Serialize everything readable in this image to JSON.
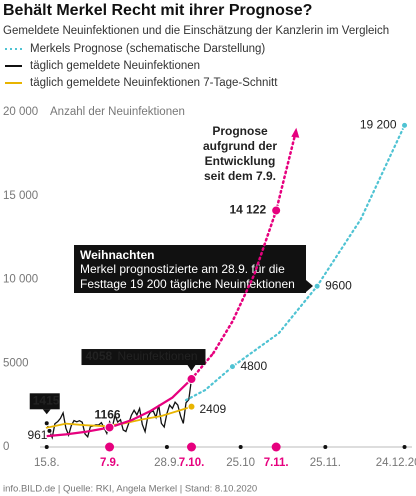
{
  "chart_data": {
    "type": "line",
    "title": "Behält Merkel Recht mit ihrer Prognose?",
    "subtitle": "Gemeldete Neuinfektionen und die Einschätzung der Kanzlerin im Vergleich",
    "y_label": "Anzahl der Neuinfektionen",
    "ylim": [
      0,
      20000
    ],
    "yticks": [
      0,
      5000,
      {
        "value": 10000,
        "label": "10 000"
      },
      {
        "value": 15000,
        "label": "15 000"
      },
      {
        "value": 20000,
        "label": "20 000"
      }
    ],
    "xlim": [
      "14.8.",
      "26.12."
    ],
    "xticks": [
      "15.8.",
      "7.9.",
      "28.9.",
      "7.10.",
      "25.10",
      "7.11.",
      "25.11.",
      "24.12.2020"
    ],
    "highlighted_xticks": [
      "7.9.",
      "7.10.",
      "7.11."
    ],
    "grid": false,
    "series": [
      {
        "name": "Merkels Prognose (schematische Darstellung)",
        "color": "#4fc3d3",
        "style": "dotted",
        "x": [
          "5.10.",
          "12.10.",
          "22.10.",
          "8.11.",
          "22.11.",
          "8.12.",
          "24.12."
        ],
        "values": [
          2800,
          3400,
          4800,
          6800,
          9600,
          13600,
          19200
        ],
        "value_labels": [
          null,
          null,
          "4800",
          null,
          "9600",
          null,
          "19 200"
        ]
      },
      {
        "name": "täglich gemeldete Neuinfektionen",
        "color": "#111111",
        "style": "solid",
        "x": [
          "15.8.",
          "16.8.",
          "17.8.",
          "18.8.",
          "19.8.",
          "20.8.",
          "21.8.",
          "22.8.",
          "23.8.",
          "24.8.",
          "25.8.",
          "26.8.",
          "27.8.",
          "28.8.",
          "29.8.",
          "30.8.",
          "31.8.",
          "1.9.",
          "2.9.",
          "3.9.",
          "4.9.",
          "5.9.",
          "6.9.",
          "7.9.",
          "8.9.",
          "9.9.",
          "10.9.",
          "11.9.",
          "12.9.",
          "13.9.",
          "14.9.",
          "15.9.",
          "16.9.",
          "17.9.",
          "18.9.",
          "19.9.",
          "20.9.",
          "21.9.",
          "22.9.",
          "23.9.",
          "24.9.",
          "25.9.",
          "26.9.",
          "27.9.",
          "28.9.",
          "29.9.",
          "30.9.",
          "1.10.",
          "2.10.",
          "3.10.",
          "4.10.",
          "5.10.",
          "6.10.",
          "7.10."
        ],
        "values": [
          1415,
          961,
          561,
          1390,
          1510,
          1707,
          2034,
          1122,
          711,
          1278,
          1576,
          1507,
          1571,
          1479,
          785,
          610,
          1218,
          1256,
          1326,
          1311,
          1453,
          1135,
          814,
          1499,
          1176,
          1892,
          1484,
          1630,
          1017,
          927,
          1407,
          1901,
          2194,
          1916,
          2297,
          1345,
          922,
          1821,
          2089,
          2143,
          1769,
          2507,
          1411,
          1192,
          1999,
          2503,
          2303,
          2673,
          2503,
          1844,
          1410,
          2639,
          2828,
          4058
        ],
        "value_labels": [
          "1415",
          "961",
          null,
          null,
          null,
          null,
          null,
          null,
          null,
          null,
          null,
          null,
          null,
          null,
          null,
          null,
          null,
          null,
          null,
          null,
          null,
          null,
          null,
          null,
          null,
          null,
          null,
          null,
          null,
          null,
          null,
          null,
          null,
          null,
          null,
          null,
          null,
          null,
          null,
          null,
          null,
          null,
          null,
          null,
          null,
          null,
          null,
          null,
          null,
          null,
          null,
          null,
          null,
          null
        ]
      },
      {
        "name": "täglich gemeldete Neuinfektionen 7-Tage-Schnitt",
        "color": "#e8b400",
        "style": "solid",
        "x": [
          "15.8.",
          "22.8.",
          "29.8.",
          "5.9.",
          "12.9.",
          "19.9.",
          "26.9.",
          "3.10.",
          "7.10."
        ],
        "values": [
          1150,
          1400,
          1300,
          1250,
          1400,
          1650,
          1850,
          2200,
          2409
        ],
        "value_labels": [
          null,
          null,
          null,
          null,
          null,
          null,
          null,
          null,
          "2409"
        ]
      }
    ],
    "forecast": {
      "label_lines": [
        "Prognose",
        "aufgrund der",
        "Entwicklung",
        "seit dem 7.9."
      ],
      "color": "#e6007e",
      "x": [
        "15.8.",
        "22.8.",
        "29.8.",
        "7.9.",
        "15.9.",
        "22.9.",
        "30.9.",
        "7.10."
      ],
      "values": [
        650,
        750,
        900,
        1166,
        1600,
        2150,
        2950,
        4058
      ],
      "value_labels": [
        null,
        null,
        null,
        "1166",
        null,
        null,
        null,
        "4058"
      ],
      "note": "Neuinfektionen",
      "projection_x": [
        "15.10.",
        "22.10.",
        "30.10.",
        "7.11.",
        "14.11."
      ],
      "projection_values": [
        5600,
        7500,
        10300,
        14122,
        18700
      ],
      "projection_value_labels": [
        null,
        null,
        null,
        "14 122",
        null
      ]
    },
    "callout": {
      "title": "Weihnachten",
      "lines": [
        "Merkel prognostizierte am 28.9. für die",
        "Festtage 19 200 tägliche Neuinfektionen"
      ]
    },
    "footer": "info.BILD.de | Quelle: RKI, Angela Merkel | Stand: 8.10.2020"
  }
}
